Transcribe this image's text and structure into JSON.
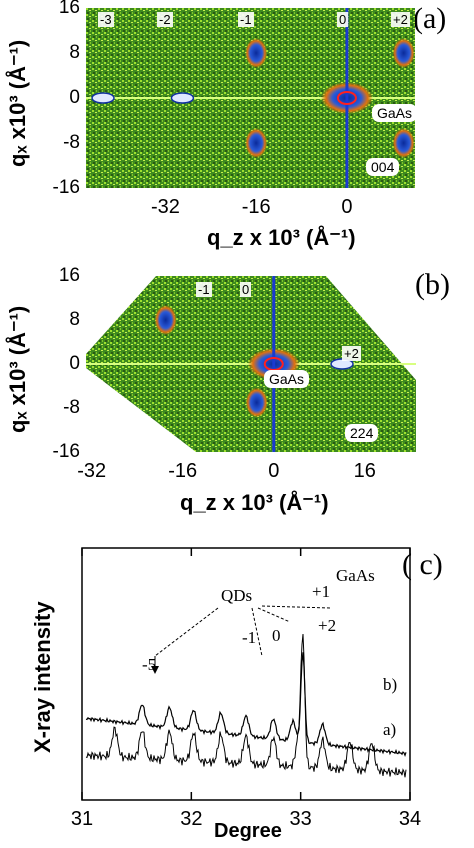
{
  "panel_a": {
    "letter": "(a)",
    "yticks": [
      "-16",
      "-8",
      "0",
      "8",
      "16"
    ],
    "xticks": [
      "-32",
      "-16",
      "0"
    ],
    "ylabel": "qₓ x10³ (Å⁻¹)",
    "xlabel": "q_z x 10³ (Å⁻¹)",
    "orders": [
      "-3",
      "-2",
      "-1",
      "0",
      "+2"
    ],
    "material": "GaAs",
    "reflection": "004"
  },
  "panel_b": {
    "letter": "(b)",
    "yticks": [
      "-16",
      "-8",
      "0",
      "8",
      "16"
    ],
    "xticks": [
      "-32",
      "-16",
      "0",
      "16"
    ],
    "ylabel": "qₓ x10³ (Å⁻¹)",
    "xlabel": "q_z x 10³ (Å⁻¹)",
    "orders": [
      "-1",
      "0",
      "+2"
    ],
    "material": "GaAs",
    "reflection": "224"
  },
  "panel_c": {
    "letter": "( c)",
    "ylabel": "X-ray intensity",
    "xlabel": "Degree",
    "xticks": [
      "31",
      "32",
      "33",
      "34"
    ],
    "annotations": {
      "qds": "QDs",
      "gaas": "GaAs",
      "m5": "-5",
      "m1": "-1",
      "zero": "0",
      "p1": "+1",
      "p2": "+2",
      "curve_a": "a)",
      "curve_b": "b)"
    }
  },
  "chart_data": [
    {
      "type": "heatmap",
      "title": "",
      "xlabel": "q_z x 10^3 (Å^-1)",
      "ylabel": "q_x x10^3 (Å^-1)",
      "xlim": [
        -46,
        12
      ],
      "ylim": [
        16,
        -16
      ],
      "xticks": [
        -32,
        -16,
        0
      ],
      "yticks": [
        -16,
        -8,
        0,
        8,
        16
      ],
      "peaks": [
        {
          "label": "-3",
          "qz": -43,
          "qx": 0
        },
        {
          "label": "-2",
          "qz": -29,
          "qx": 0
        },
        {
          "label": "-1",
          "qz": -16,
          "qx": -8
        },
        {
          "label": "-1",
          "qz": -16,
          "qx": 8
        },
        {
          "label": "0 (GaAs)",
          "qz": 0,
          "qx": 0
        },
        {
          "label": "+2",
          "qz": 10,
          "qx": -8
        },
        {
          "label": "+2",
          "qz": 10,
          "qx": 8
        }
      ],
      "reflection": "004"
    },
    {
      "type": "heatmap",
      "title": "",
      "xlabel": "q_z x 10^3 (Å^-1)",
      "ylabel": "q_x x10^3 (Å^-1)",
      "xlim": [
        -33,
        25
      ],
      "ylim": [
        16,
        -16
      ],
      "xticks": [
        -32,
        -16,
        0,
        16
      ],
      "yticks": [
        -16,
        -8,
        0,
        8,
        16
      ],
      "peaks": [
        {
          "label": "-1",
          "qz": -19,
          "qx": 8
        },
        {
          "label": "0",
          "qz": -3,
          "qx": -7
        },
        {
          "label": "GaAs",
          "qz": 0,
          "qx": 0
        },
        {
          "label": "+2",
          "qz": 12,
          "qx": 0
        }
      ],
      "reflection": "224"
    },
    {
      "type": "line",
      "title": "",
      "xlabel": "Degree",
      "ylabel": "X-ray intensity",
      "xlim": [
        31,
        34
      ],
      "xticks": [
        31,
        32,
        33,
        34
      ],
      "series": [
        {
          "name": "a)",
          "peaks_deg": [
            31.3,
            31.55,
            31.8,
            32.02,
            32.27,
            32.5,
            32.75,
            32.98,
            33.02,
            33.2,
            33.45,
            33.65
          ]
        },
        {
          "name": "b)",
          "peaks_deg": [
            31.55,
            31.8,
            32.02,
            32.27,
            32.5,
            32.75,
            32.93,
            33.02,
            33.2
          ]
        }
      ]
    }
  ]
}
